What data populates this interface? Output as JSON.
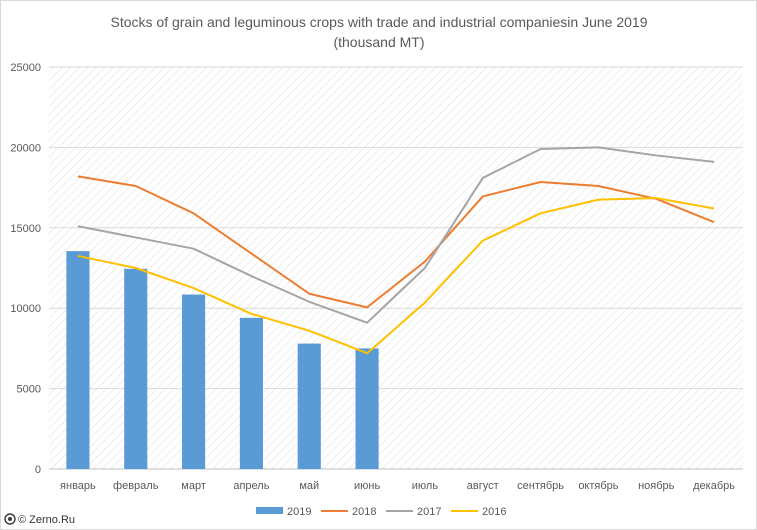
{
  "chart_data": {
    "type": "bar",
    "title": "Stocks of grain and leguminous crops with trade and industrial companiesin June 2019",
    "subtitle": "(thousand MT)",
    "categories": [
      "январь",
      "февраль",
      "март",
      "апрель",
      "май",
      "июнь",
      "июль",
      "август",
      "сентябрь",
      "октябрь",
      "ноябрь",
      "декабрь"
    ],
    "ylim": [
      0,
      25000
    ],
    "yticks": [
      0,
      5000,
      10000,
      15000,
      20000,
      25000
    ],
    "ytick_labels": [
      "0",
      "5000",
      "10000",
      "15000",
      "20000",
      "25000"
    ],
    "grid": true,
    "legend_position": "bottom",
    "series": [
      {
        "name": "2019",
        "kind": "bar",
        "color": "#5b9bd5",
        "values": [
          13550,
          12450,
          10850,
          9400,
          7800,
          7500,
          null,
          null,
          null,
          null,
          null,
          null
        ]
      },
      {
        "name": "2018",
        "kind": "line",
        "color": "#ed7d31",
        "values": [
          18200,
          17600,
          15900,
          13400,
          10900,
          10050,
          12900,
          16950,
          17850,
          17600,
          16800,
          15350
        ]
      },
      {
        "name": "2017",
        "kind": "line",
        "color": "#a5a5a5",
        "values": [
          15100,
          14400,
          13700,
          12000,
          10400,
          9100,
          12500,
          18100,
          19900,
          20000,
          19500,
          19100
        ]
      },
      {
        "name": "2016",
        "kind": "line",
        "color": "#ffc000",
        "values": [
          13250,
          12500,
          11250,
          9650,
          8600,
          7200,
          10350,
          14200,
          15900,
          16750,
          16850,
          16200
        ]
      }
    ]
  },
  "credit": "© Zerno.Ru"
}
